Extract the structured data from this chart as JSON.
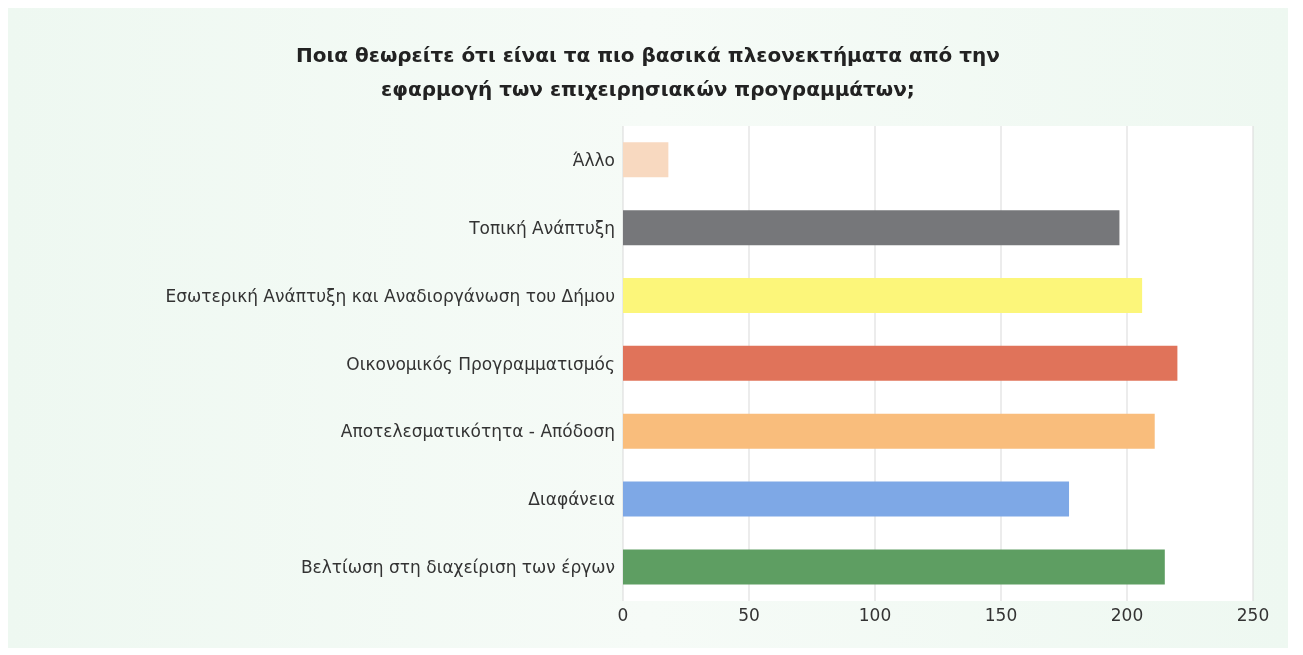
{
  "chart_data": {
    "type": "bar",
    "orientation": "horizontal",
    "title": "Ποια θεωρείτε ότι είναι τα πιο βασικά πλεονεκτήματα από την εφαρμογή των επιχειρησιακών προγραμμάτων;",
    "categories": [
      "Άλλο",
      "Τοπική Ανάπτυξη",
      "Εσωτερική Ανάπτυξη και Αναδιοργάνωση του Δήμου",
      "Οικονομικός Προγραμματισμός",
      "Αποτελεσματικότητα - Απόδοση",
      "Διαφάνεια",
      "Βελτίωση στη διαχείριση των έργων"
    ],
    "values": [
      18,
      197,
      206,
      220,
      211,
      177,
      215
    ],
    "colors": [
      "#f8d9c0",
      "#76777a",
      "#fcf67a",
      "#e0735a",
      "#f9bd7c",
      "#7ea8e6",
      "#5e9e62"
    ],
    "xlim": [
      0,
      250
    ],
    "xticks": [
      0,
      50,
      100,
      150,
      200,
      250
    ],
    "grid": "x"
  }
}
